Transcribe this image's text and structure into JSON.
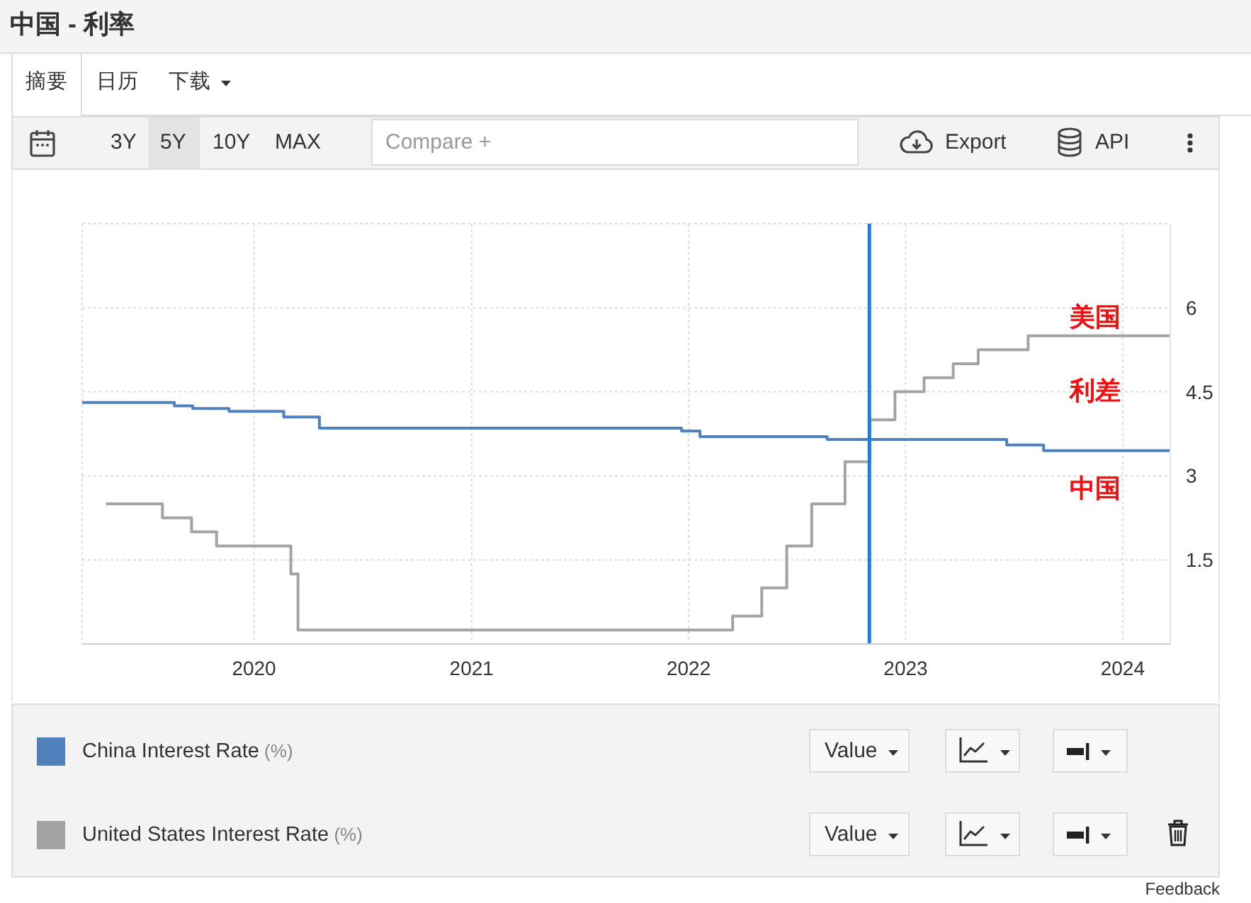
{
  "chart_data": {
    "type": "step",
    "title": "中国 - 利率",
    "xlim": [
      "2019-03-18",
      "2024-03-21"
    ],
    "xticks": [
      "2020",
      "2021",
      "2022",
      "2023",
      "2024"
    ],
    "ylim": [
      0,
      7.5
    ],
    "yticks": [
      {
        "value": 0,
        "label": null
      },
      1.5,
      3,
      4.5,
      6,
      {
        "value": 7.5,
        "label": null
      }
    ],
    "grid": true,
    "legend": "bottom",
    "series": [
      {
        "name": "China Interest Rate (%)",
        "color": "#4f81bd",
        "x": [
          "2019-03-18",
          "2019-08-20",
          "2019-09-20",
          "2019-11-20",
          "2020-02-20",
          "2020-04-20",
          "2021-12-20",
          "2022-01-20",
          "2022-08-22",
          "2023-06-20",
          "2023-08-21",
          "2024-03-21"
        ],
        "values": [
          4.31,
          4.25,
          4.2,
          4.15,
          4.05,
          3.85,
          3.8,
          3.7,
          3.65,
          3.55,
          3.45,
          3.45
        ]
      },
      {
        "name": "United States Interest Rate (%)",
        "color": "#a3a3a3",
        "x": [
          "2019-04-27",
          "2019-07-31",
          "2019-09-18",
          "2019-10-30",
          "2020-03-03",
          "2020-03-15",
          "2022-03-16",
          "2022-05-04",
          "2022-06-15",
          "2022-07-27",
          "2022-09-21",
          "2022-11-02",
          "2022-12-14",
          "2023-02-01",
          "2023-03-22",
          "2023-05-03",
          "2023-07-26",
          "2024-03-21"
        ],
        "values": [
          2.5,
          2.25,
          2,
          1.75,
          1.25,
          0.25,
          0.5,
          1,
          1.75,
          2.5,
          3.25,
          4,
          4.5,
          4.75,
          5,
          5.25,
          5.5,
          5.5
        ]
      }
    ],
    "ref_lines": [
      {
        "axis": "x",
        "value": "2022-11-01",
        "color": "#1a7fe3"
      }
    ],
    "annotations": [
      "摘要",
      "日历",
      "下载",
      "3Y",
      "5Y",
      "10Y",
      "MAX",
      "Compare +",
      "Export",
      "API",
      "Value",
      "Value",
      "Feedback",
      "美国",
      "利差",
      "中国"
    ]
  }
}
